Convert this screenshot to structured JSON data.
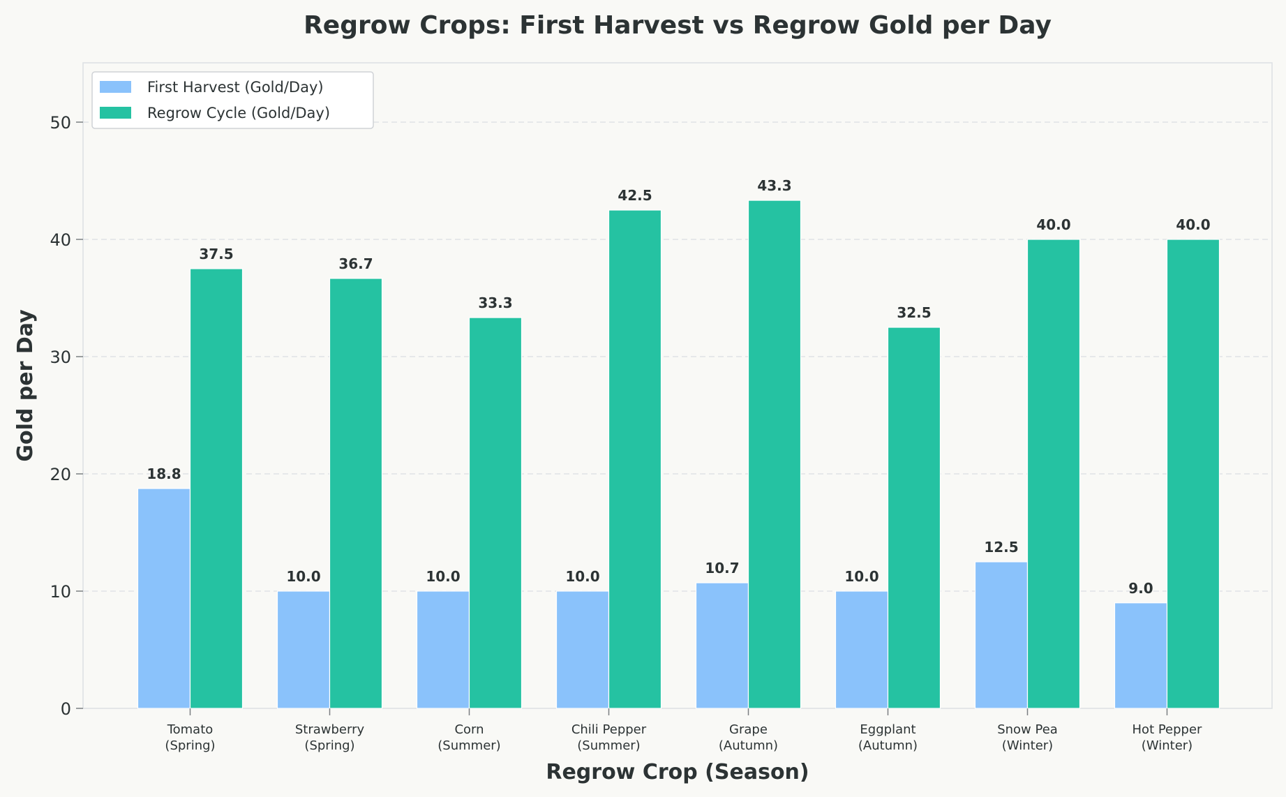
{
  "chart_data": {
    "type": "bar",
    "title": "Regrow Crops: First Harvest vs Regrow Gold per Day",
    "xlabel": "Regrow Crop (Season)",
    "ylabel": "Gold per Day",
    "categories": [
      [
        "Tomato",
        "(Spring)"
      ],
      [
        "Strawberry",
        "(Spring)"
      ],
      [
        "Corn",
        "(Summer)"
      ],
      [
        "Chili Pepper",
        "(Summer)"
      ],
      [
        "Grape",
        "(Autumn)"
      ],
      [
        "Eggplant",
        "(Autumn)"
      ],
      [
        "Snow Pea",
        "(Winter)"
      ],
      [
        "Hot Pepper",
        "(Winter)"
      ]
    ],
    "series": [
      {
        "name": "First Harvest (Gold/Day)",
        "color": "#8ac2fb",
        "values": [
          18.75,
          10.0,
          10.0,
          10.0,
          10.71,
          10.0,
          12.5,
          9.0
        ],
        "labels": [
          "18.8",
          "10.0",
          "10.0",
          "10.0",
          "10.7",
          "10.0",
          "12.5",
          "9.0"
        ]
      },
      {
        "name": "Regrow Cycle (Gold/Day)",
        "color": "#25c2a2",
        "values": [
          37.5,
          36.67,
          33.33,
          42.5,
          43.33,
          32.5,
          40.0,
          40.0
        ],
        "labels": [
          "37.5",
          "36.7",
          "33.3",
          "42.5",
          "43.3",
          "32.5",
          "40.0",
          "40.0"
        ]
      }
    ],
    "ylim": [
      0,
      55
    ],
    "yticks": [
      0,
      10,
      20,
      30,
      40,
      50
    ],
    "grid": true,
    "legend_position": "top-left"
  }
}
